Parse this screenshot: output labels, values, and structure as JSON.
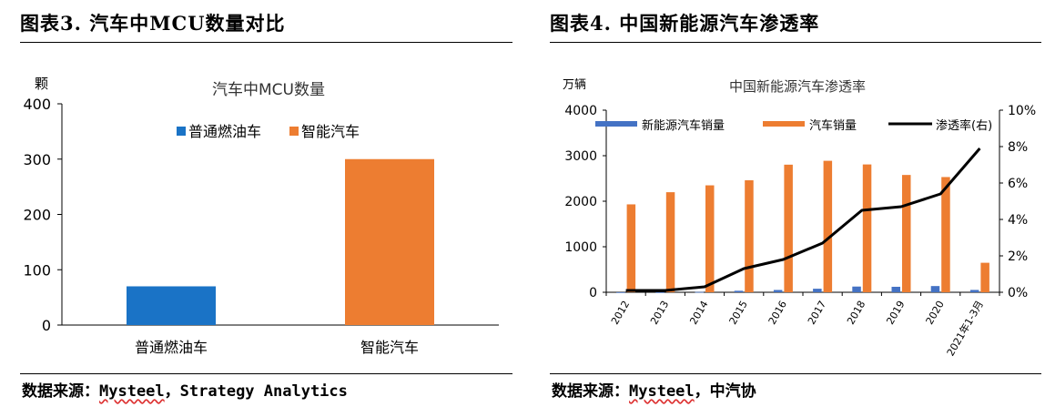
{
  "left": {
    "figure_title": "图表3.   汽车中MCU数量对比",
    "source_prefix": "数据来源：",
    "source_brand": "Mysteel",
    "source_rest": "，Strategy Analytics"
  },
  "right": {
    "figure_title": "图表4.   中国新能源汽车渗透率",
    "source_prefix": "数据来源：",
    "source_brand": "Mysteel",
    "source_rest": "，中汽协"
  },
  "chart_data": [
    {
      "type": "bar",
      "title": "汽车中MCU数量",
      "ylabel": "颗",
      "ylim": [
        0,
        400
      ],
      "yticks": [
        0,
        100,
        200,
        300,
        400
      ],
      "categories": [
        "普通燃油车",
        "智能汽车"
      ],
      "values": [
        70,
        300
      ],
      "colors": [
        "#1a73c6",
        "#ed7d31"
      ],
      "legend": [
        "普通燃油车",
        "智能汽车"
      ],
      "legend_position": "top",
      "grid": false
    },
    {
      "type": "bar",
      "title": "中国新能源汽车渗透率",
      "ylabel": "万辆",
      "ylim": [
        0,
        4000
      ],
      "yticks": [
        0,
        1000,
        2000,
        3000,
        4000
      ],
      "y2lim": [
        0,
        10
      ],
      "y2ticks": [
        "0%",
        "2%",
        "4%",
        "6%",
        "8%",
        "10%"
      ],
      "categories": [
        "2012",
        "2013",
        "2014",
        "2015",
        "2016",
        "2017",
        "2018",
        "2019",
        "2020",
        "2021年1-3月"
      ],
      "series": [
        {
          "name": "新能源汽车销量",
          "kind": "bar",
          "color": "#4472c4",
          "values": [
            1.3,
            1.8,
            7.5,
            33.1,
            50.7,
            77.7,
            125.6,
            120.6,
            136.7,
            51.5
          ]
        },
        {
          "name": "汽车销量",
          "kind": "bar",
          "color": "#ed7d31",
          "values": [
            1931,
            2198,
            2349,
            2460,
            2803,
            2888,
            2808,
            2577,
            2531,
            648
          ]
        },
        {
          "name": "渗透率(右)",
          "kind": "line",
          "axis": "right",
          "color": "#000000",
          "values": [
            0.1,
            0.1,
            0.3,
            1.3,
            1.8,
            2.7,
            4.5,
            4.7,
            5.4,
            7.9
          ]
        }
      ],
      "legend_position": "top",
      "grid": false
    }
  ]
}
